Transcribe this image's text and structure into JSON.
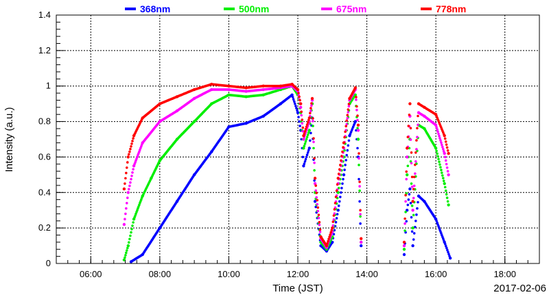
{
  "chart_data": {
    "type": "scatter",
    "xlabel": "Time (JST)",
    "ylabel": "Intensity (a.u.)",
    "date": "2017-02-06",
    "xlim": [
      "05:00",
      "19:00"
    ],
    "ylim": [
      0,
      1.4
    ],
    "x_ticks": [
      "06:00",
      "08:00",
      "10:00",
      "12:00",
      "14:00",
      "16:00",
      "18:00"
    ],
    "y_ticks": [
      "0",
      "0.2",
      "0.4",
      "0.6",
      "0.8",
      "1",
      "1.2",
      "1.4"
    ],
    "grid": true,
    "legend_position": "top",
    "series": [
      {
        "name": "368nm",
        "color": "#0000ff",
        "points": [
          [
            "07:10",
            0.01
          ],
          [
            "07:30",
            0.05
          ],
          [
            "08:00",
            0.2
          ],
          [
            "08:30",
            0.35
          ],
          [
            "09:00",
            0.5
          ],
          [
            "09:30",
            0.63
          ],
          [
            "10:00",
            0.77
          ],
          [
            "10:30",
            0.79
          ],
          [
            "11:00",
            0.83
          ],
          [
            "11:30",
            0.9
          ],
          [
            "11:50",
            0.95
          ],
          [
            "12:00",
            0.85
          ],
          [
            "12:05",
            0.75
          ],
          [
            "12:10",
            0.55
          ],
          [
            "12:20",
            0.65
          ],
          [
            "12:25",
            0.82
          ],
          [
            "12:30",
            0.35
          ],
          [
            "12:40",
            0.1
          ],
          [
            "12:50",
            0.07
          ],
          [
            "13:00",
            0.12
          ],
          [
            "13:10",
            0.3
          ],
          [
            "13:20",
            0.5
          ],
          [
            "13:30",
            0.72
          ],
          [
            "13:40",
            0.8
          ],
          [
            "13:45",
            0.6
          ],
          [
            "13:50",
            0.1
          ],
          [
            "15:05",
            0.05
          ],
          [
            "15:10",
            0.3
          ],
          [
            "15:15",
            0.42
          ],
          [
            "15:20",
            0.1
          ],
          [
            "15:30",
            0.38
          ],
          [
            "15:40",
            0.35
          ],
          [
            "16:00",
            0.25
          ],
          [
            "16:15",
            0.12
          ],
          [
            "16:25",
            0.03
          ]
        ]
      },
      {
        "name": "500nm",
        "color": "#00ee00",
        "points": [
          [
            "06:58",
            0.02
          ],
          [
            "07:05",
            0.1
          ],
          [
            "07:15",
            0.25
          ],
          [
            "07:30",
            0.38
          ],
          [
            "07:45",
            0.48
          ],
          [
            "08:00",
            0.58
          ],
          [
            "08:30",
            0.7
          ],
          [
            "09:00",
            0.8
          ],
          [
            "09:30",
            0.9
          ],
          [
            "10:00",
            0.95
          ],
          [
            "10:30",
            0.94
          ],
          [
            "11:00",
            0.95
          ],
          [
            "11:30",
            0.98
          ],
          [
            "11:50",
            1.0
          ],
          [
            "12:00",
            0.95
          ],
          [
            "12:05",
            0.85
          ],
          [
            "12:10",
            0.65
          ],
          [
            "12:20",
            0.75
          ],
          [
            "12:25",
            0.9
          ],
          [
            "12:30",
            0.4
          ],
          [
            "12:40",
            0.12
          ],
          [
            "12:50",
            0.08
          ],
          [
            "13:00",
            0.15
          ],
          [
            "13:10",
            0.4
          ],
          [
            "13:20",
            0.6
          ],
          [
            "13:30",
            0.9
          ],
          [
            "13:40",
            0.95
          ],
          [
            "13:45",
            0.7
          ],
          [
            "13:50",
            0.12
          ],
          [
            "15:05",
            0.08
          ],
          [
            "15:10",
            0.5
          ],
          [
            "15:15",
            0.7
          ],
          [
            "15:20",
            0.2
          ],
          [
            "15:30",
            0.78
          ],
          [
            "15:40",
            0.76
          ],
          [
            "16:00",
            0.65
          ],
          [
            "16:15",
            0.45
          ],
          [
            "16:22",
            0.33
          ]
        ]
      },
      {
        "name": "675nm",
        "color": "#ff00ff",
        "points": [
          [
            "06:58",
            0.22
          ],
          [
            "07:05",
            0.4
          ],
          [
            "07:15",
            0.55
          ],
          [
            "07:30",
            0.68
          ],
          [
            "08:00",
            0.8
          ],
          [
            "08:30",
            0.86
          ],
          [
            "09:00",
            0.93
          ],
          [
            "09:30",
            0.98
          ],
          [
            "10:00",
            0.98
          ],
          [
            "10:30",
            0.97
          ],
          [
            "11:00",
            0.98
          ],
          [
            "11:30",
            0.99
          ],
          [
            "11:50",
            1.0
          ],
          [
            "12:00",
            0.97
          ],
          [
            "12:05",
            0.88
          ],
          [
            "12:10",
            0.7
          ],
          [
            "12:20",
            0.8
          ],
          [
            "12:25",
            0.92
          ],
          [
            "12:30",
            0.45
          ],
          [
            "12:40",
            0.14
          ],
          [
            "12:50",
            0.09
          ],
          [
            "13:00",
            0.18
          ],
          [
            "13:10",
            0.45
          ],
          [
            "13:20",
            0.65
          ],
          [
            "13:30",
            0.92
          ],
          [
            "13:40",
            0.98
          ],
          [
            "13:45",
            0.75
          ],
          [
            "13:50",
            0.12
          ],
          [
            "15:05",
            0.1
          ],
          [
            "15:10",
            0.6
          ],
          [
            "15:15",
            0.83
          ],
          [
            "15:20",
            0.3
          ],
          [
            "15:30",
            0.85
          ],
          [
            "15:40",
            0.83
          ],
          [
            "16:00",
            0.78
          ],
          [
            "16:15",
            0.62
          ],
          [
            "16:22",
            0.5
          ]
        ]
      },
      {
        "name": "778nm",
        "color": "#ff0000",
        "points": [
          [
            "06:58",
            0.42
          ],
          [
            "07:05",
            0.6
          ],
          [
            "07:15",
            0.72
          ],
          [
            "07:30",
            0.82
          ],
          [
            "08:00",
            0.9
          ],
          [
            "08:30",
            0.94
          ],
          [
            "09:00",
            0.98
          ],
          [
            "09:30",
            1.01
          ],
          [
            "10:00",
            1.0
          ],
          [
            "10:30",
            0.99
          ],
          [
            "11:00",
            1.0
          ],
          [
            "11:30",
            1.0
          ],
          [
            "11:50",
            1.01
          ],
          [
            "12:00",
            0.98
          ],
          [
            "12:05",
            0.9
          ],
          [
            "12:10",
            0.72
          ],
          [
            "12:20",
            0.82
          ],
          [
            "12:25",
            0.93
          ],
          [
            "12:30",
            0.48
          ],
          [
            "12:40",
            0.15
          ],
          [
            "12:50",
            0.1
          ],
          [
            "13:00",
            0.2
          ],
          [
            "13:10",
            0.48
          ],
          [
            "13:20",
            0.68
          ],
          [
            "13:30",
            0.93
          ],
          [
            "13:40",
            0.99
          ],
          [
            "13:45",
            0.78
          ],
          [
            "13:50",
            0.14
          ],
          [
            "15:05",
            0.12
          ],
          [
            "15:10",
            0.65
          ],
          [
            "15:15",
            0.9
          ],
          [
            "15:20",
            0.35
          ],
          [
            "15:30",
            0.9
          ],
          [
            "15:40",
            0.88
          ],
          [
            "16:00",
            0.84
          ],
          [
            "16:15",
            0.72
          ],
          [
            "16:22",
            0.62
          ]
        ]
      }
    ]
  }
}
